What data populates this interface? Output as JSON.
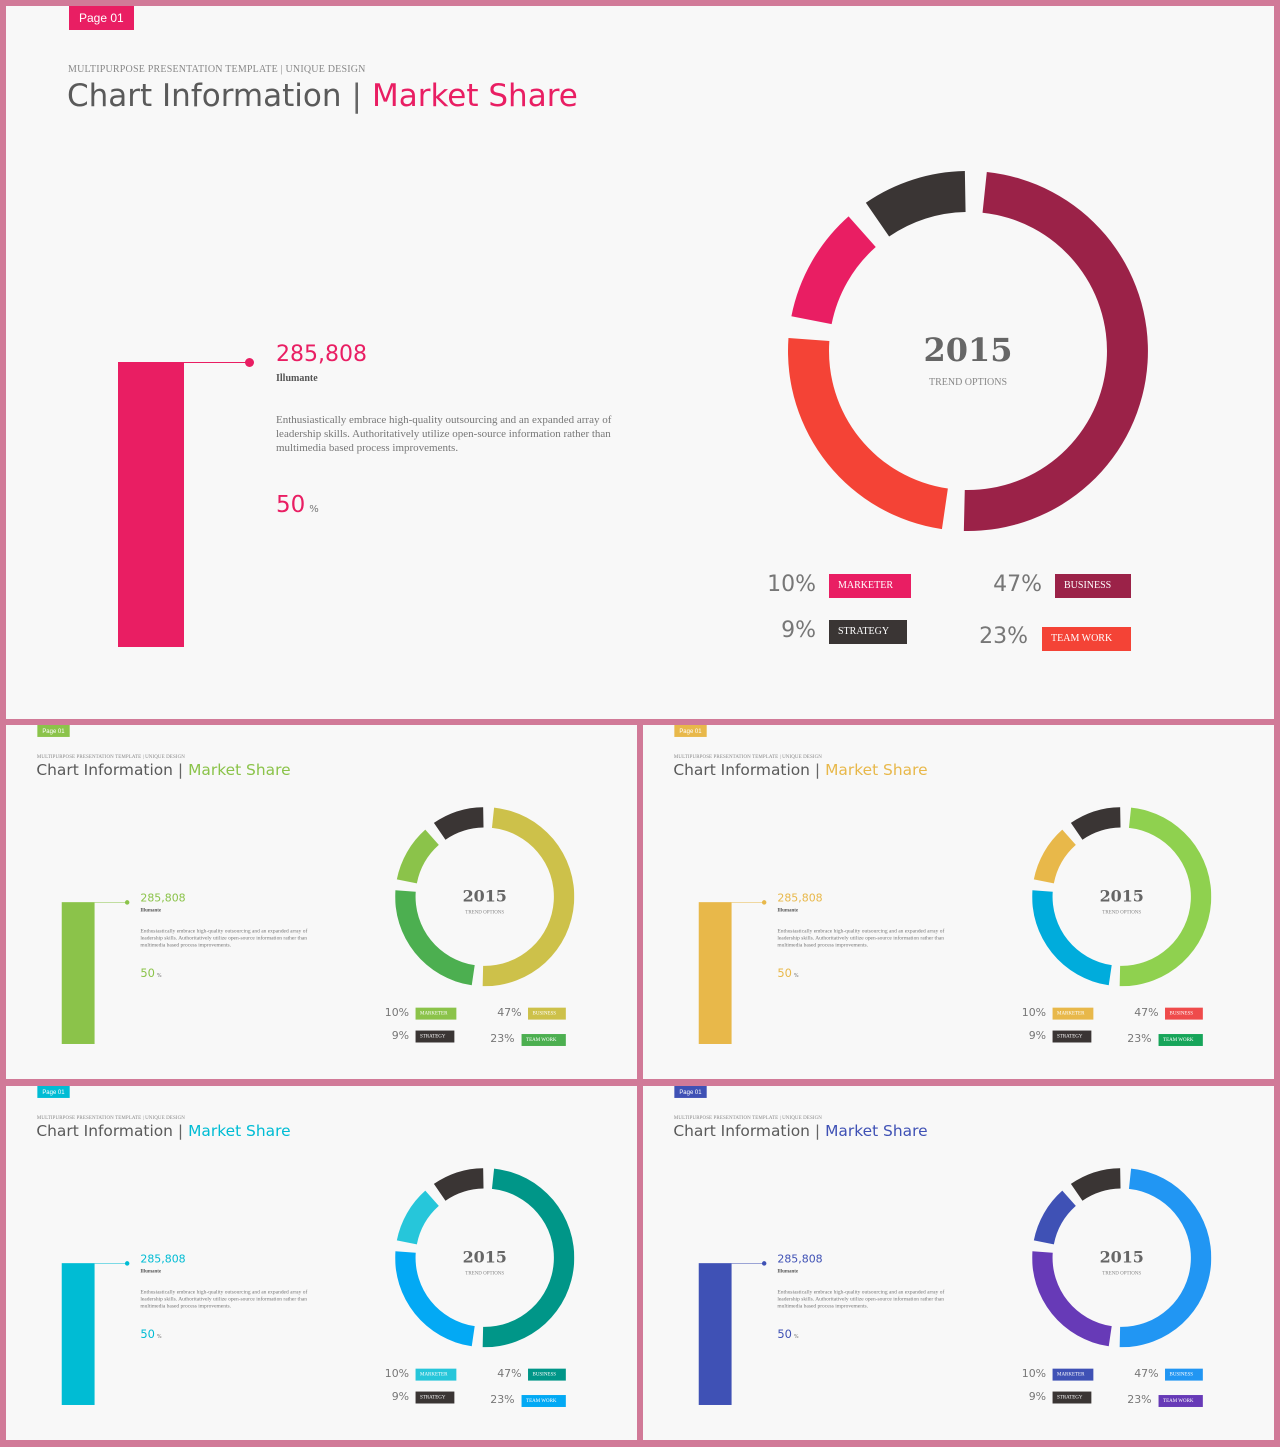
{
  "slides": [
    {
      "page_tag": "Page 01",
      "subtitle": "MULTIPURPOSE PRESENTATION TEMPLATE | UNIQUE DESIGN",
      "title_main": "Chart Information",
      "title_sep": "|",
      "title_accent": "Market Share",
      "big_number": "285,808",
      "name": "Illumante",
      "description": "Enthusiastically embrace high-quality outsourcing and an expanded array of leadership skills. Authoritatively utilize open-source information rather than multimedia based process improvements.",
      "percent_value": "50",
      "percent_unit": "%",
      "center_year": "2015",
      "center_label": "TREND OPTIONS",
      "colors": {
        "accent": "#e91e63",
        "marketer": "#e91e63",
        "strategy": "#3a3534",
        "business": "#9b2248",
        "teamwork": "#f44336"
      },
      "legend": [
        {
          "value": "10%",
          "label": "MARKETER"
        },
        {
          "value": "47%",
          "label": "BUSINESS"
        },
        {
          "value": "9%",
          "label": "STRATEGY"
        },
        {
          "value": "23%",
          "label": "TEAM WORK"
        }
      ]
    },
    {
      "page_tag": "Page 01",
      "subtitle": "MULTIPURPOSE PRESENTATION TEMPLATE | UNIQUE DESIGN",
      "title_main": "Chart Information",
      "title_sep": "|",
      "title_accent": "Market Share",
      "big_number": "285,808",
      "name": "Illumante",
      "description": "Enthusiastically embrace high-quality outsourcing and an expanded array of leadership skills. Authoritatively utilize open-source information rather than multimedia based process improvements.",
      "percent_value": "50",
      "percent_unit": "%",
      "center_year": "2015",
      "center_label": "TREND OPTIONS",
      "colors": {
        "accent": "#8bc34a",
        "marketer": "#8bc34a",
        "strategy": "#3a3534",
        "business": "#cdc14a",
        "teamwork": "#4caf50"
      },
      "legend": [
        {
          "value": "10%",
          "label": "MARKETER"
        },
        {
          "value": "47%",
          "label": "BUSINESS"
        },
        {
          "value": "9%",
          "label": "STRATEGY"
        },
        {
          "value": "23%",
          "label": "TEAM WORK"
        }
      ]
    },
    {
      "page_tag": "Page 01",
      "subtitle": "MULTIPURPOSE PRESENTATION TEMPLATE | UNIQUE DESIGN",
      "title_main": "Chart Information",
      "title_sep": "|",
      "title_accent": "Market Share",
      "big_number": "285,808",
      "name": "Illumante",
      "description": "Enthusiastically embrace high-quality outsourcing and an expanded array of leadership skills. Authoritatively utilize open-source information rather than multimedia based process improvements.",
      "percent_value": "50",
      "percent_unit": "%",
      "center_year": "2015",
      "center_label": "TREND OPTIONS",
      "colors": {
        "accent": "#e8b84a",
        "marketer": "#e8b84a",
        "strategy": "#3a3534",
        "business": "#8fd14f",
        "teamwork": "#00acdc",
        "business_tag": "#ef4b4b",
        "teamwork_tag": "#17a55a"
      },
      "legend": [
        {
          "value": "10%",
          "label": "MARKETER"
        },
        {
          "value": "47%",
          "label": "BUSINESS"
        },
        {
          "value": "9%",
          "label": "STRATEGY"
        },
        {
          "value": "23%",
          "label": "TEAM WORK"
        }
      ]
    },
    {
      "page_tag": "Page 01",
      "subtitle": "MULTIPURPOSE PRESENTATION TEMPLATE | UNIQUE DESIGN",
      "title_main": "Chart Information",
      "title_sep": "|",
      "title_accent": "Market Share",
      "big_number": "285,808",
      "name": "Illumante",
      "description": "Enthusiastically embrace high-quality outsourcing and an expanded array of leadership skills. Authoritatively utilize open-source information rather than multimedia based process improvements.",
      "percent_value": "50",
      "percent_unit": "%",
      "center_year": "2015",
      "center_label": "TREND OPTIONS",
      "colors": {
        "accent": "#00bcd4",
        "marketer": "#26c6da",
        "strategy": "#3a3534",
        "business": "#009688",
        "teamwork": "#03a9f4"
      },
      "legend": [
        {
          "value": "10%",
          "label": "MARKETER"
        },
        {
          "value": "47%",
          "label": "BUSINESS"
        },
        {
          "value": "9%",
          "label": "STRATEGY"
        },
        {
          "value": "23%",
          "label": "TEAM WORK"
        }
      ]
    },
    {
      "page_tag": "Page 01",
      "subtitle": "MULTIPURPOSE PRESENTATION TEMPLATE | UNIQUE DESIGN",
      "title_main": "Chart Information",
      "title_sep": "|",
      "title_accent": "Market Share",
      "big_number": "285,808",
      "name": "Illumante",
      "description": "Enthusiastically embrace high-quality outsourcing and an expanded array of leadership skills. Authoritatively utilize open-source information rather than multimedia based process improvements.",
      "percent_value": "50",
      "percent_unit": "%",
      "center_year": "2015",
      "center_label": "TREND OPTIONS",
      "colors": {
        "accent": "#3f51b5",
        "marketer": "#3f51b5",
        "strategy": "#3a3534",
        "business": "#2196f3",
        "teamwork": "#673ab7"
      },
      "legend": [
        {
          "value": "10%",
          "label": "MARKETER"
        },
        {
          "value": "47%",
          "label": "BUSINESS"
        },
        {
          "value": "9%",
          "label": "STRATEGY"
        },
        {
          "value": "23%",
          "label": "TEAM WORK"
        }
      ]
    }
  ],
  "chart_data": [
    {
      "type": "pie",
      "title": "2015",
      "categories": [
        "MARKETER",
        "STRATEGY",
        "BUSINESS",
        "TEAM WORK"
      ],
      "values": [
        10,
        9,
        47,
        23
      ],
      "unit": "%"
    },
    {
      "type": "pie",
      "title": "2015",
      "categories": [
        "MARKETER",
        "STRATEGY",
        "BUSINESS",
        "TEAM WORK"
      ],
      "values": [
        10,
        9,
        47,
        23
      ],
      "unit": "%"
    },
    {
      "type": "pie",
      "title": "2015",
      "categories": [
        "MARKETER",
        "STRATEGY",
        "BUSINESS",
        "TEAM WORK"
      ],
      "values": [
        10,
        9,
        47,
        23
      ],
      "unit": "%"
    },
    {
      "type": "pie",
      "title": "2015",
      "categories": [
        "MARKETER",
        "STRATEGY",
        "BUSINESS",
        "TEAM WORK"
      ],
      "values": [
        10,
        9,
        47,
        23
      ],
      "unit": "%"
    },
    {
      "type": "pie",
      "title": "2015",
      "categories": [
        "MARKETER",
        "STRATEGY",
        "BUSINESS",
        "TEAM WORK"
      ],
      "values": [
        10,
        9,
        47,
        23
      ],
      "unit": "%"
    }
  ]
}
